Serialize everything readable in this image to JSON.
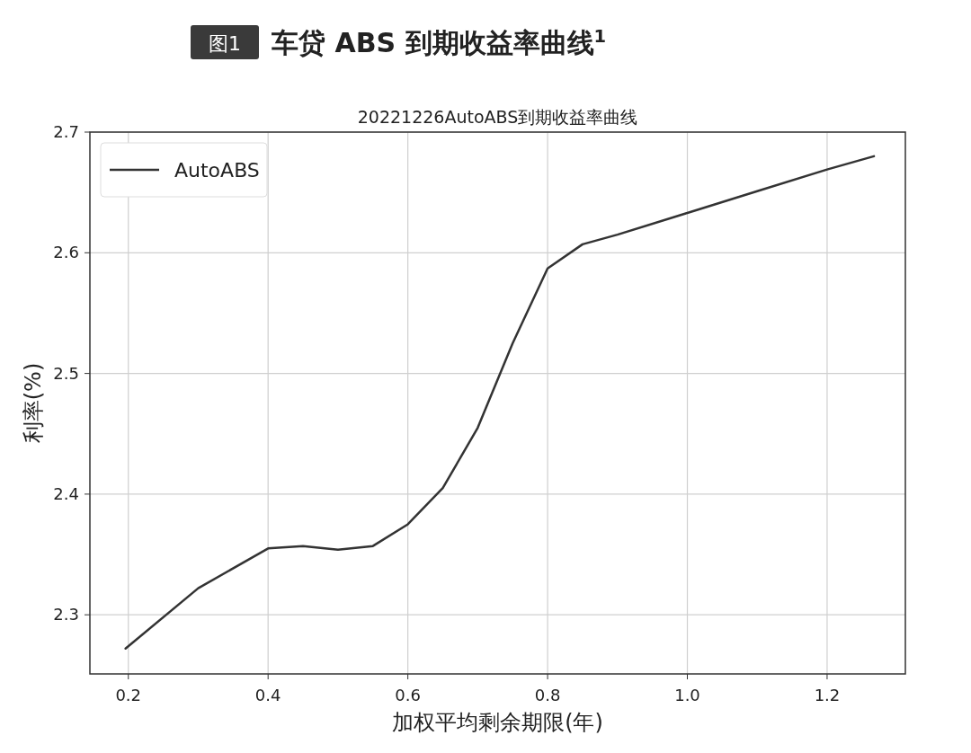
{
  "chart_data": {
    "type": "line",
    "title": "车贷 ABS 到期收益率曲线$^{1}$",
    "subtitle": "20221226AutoABS到期收益率曲线",
    "annotations": [
      "图1"
    ],
    "xlabel": "加权平均剩余期限(年)",
    "ylabel": "利率(%)",
    "x": [
      0.196,
      0.3,
      0.4,
      0.45,
      0.5,
      0.55,
      0.6,
      0.65,
      0.7,
      0.75,
      0.8,
      0.85,
      0.9,
      1.0,
      1.1,
      1.2,
      1.267
    ],
    "series": [
      {
        "name": "AutoABS",
        "color": "#333333",
        "values": [
          2.272,
          2.322,
          2.355,
          2.357,
          2.354,
          2.357,
          2.375,
          2.405,
          2.455,
          2.525,
          2.587,
          2.607,
          2.615,
          2.633,
          2.651,
          2.669,
          2.68
        ]
      }
    ],
    "xlim": [
      0.145,
      1.312
    ],
    "ylim": [
      2.251,
      2.7
    ],
    "xticks": [
      {
        "value": 0.2,
        "label": "0.2"
      },
      {
        "value": 0.4,
        "label": "0.4"
      },
      {
        "value": 0.6,
        "label": "0.6"
      },
      {
        "value": 0.8,
        "label": "0.8"
      },
      {
        "value": 1.0,
        "label": "1.0"
      },
      {
        "value": 1.2,
        "label": "1.2"
      }
    ],
    "yticks": [
      2.3,
      2.4,
      2.5,
      2.6,
      2.7
    ],
    "grid": true,
    "legend": "top left",
    "marker": "none",
    "line_style": "solid"
  }
}
